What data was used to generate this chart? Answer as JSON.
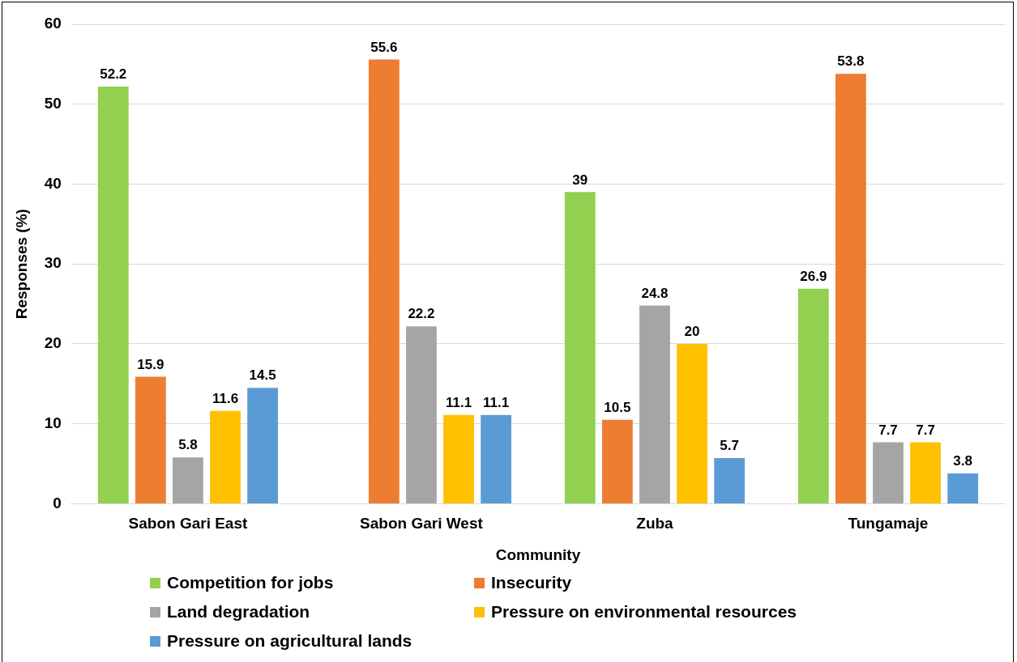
{
  "chart_data": {
    "type": "bar",
    "xlabel": "Community",
    "ylabel": "Responses (%)",
    "categories": [
      "Sabon Gari East",
      "Sabon Gari West",
      "Zuba",
      "Tungamaje"
    ],
    "series": [
      {
        "name": "Competition for jobs",
        "color": "#92d050",
        "values": [
          52.2,
          null,
          39,
          26.9
        ]
      },
      {
        "name": "Insecurity",
        "color": "#ed7d31",
        "values": [
          15.9,
          55.6,
          10.5,
          53.8
        ]
      },
      {
        "name": "Land degradation",
        "color": "#a5a5a5",
        "values": [
          5.8,
          22.2,
          24.8,
          7.7
        ]
      },
      {
        "name": "Pressure on environmental resources",
        "color": "#ffc000",
        "values": [
          11.6,
          11.1,
          20,
          7.7
        ]
      },
      {
        "name": "Pressure on agricultural lands",
        "color": "#5b9bd5",
        "values": [
          14.5,
          11.1,
          5.7,
          3.8
        ]
      }
    ],
    "ylim": [
      0,
      60
    ],
    "yticks": [
      0,
      10,
      20,
      30,
      40,
      50,
      60
    ],
    "grid": "y",
    "legend": "bottom",
    "data_labels": true
  }
}
